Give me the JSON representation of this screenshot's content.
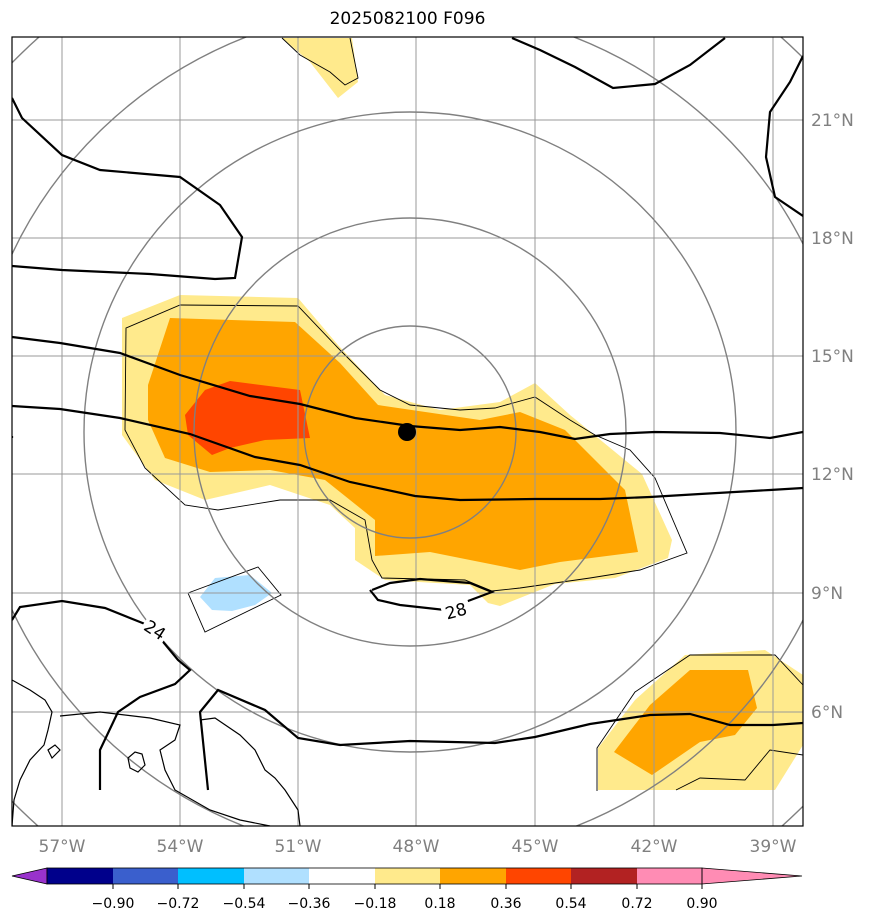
{
  "title": "2025082100 F096",
  "map": {
    "lon_labels": [
      "57°W",
      "54°W",
      "51°W",
      "48°W",
      "45°W",
      "42°W",
      "39°W"
    ],
    "lat_labels": [
      "21°N",
      "18°N",
      "15°N",
      "12°N",
      "9°N",
      "6°N"
    ],
    "storm_center": {
      "lon": "48.2°W",
      "lat": "13.1°N"
    },
    "range_rings": 5,
    "contour_labels": [
      "24",
      "28"
    ],
    "fill_colors": {
      "pos_018_036": "#ffea8c",
      "pos_036_054": "#ffa500",
      "pos_054_072": "#ff4500",
      "neg_018_036": "#b0e0ff"
    }
  },
  "colorbar": {
    "ticks": [
      "−0.90",
      "−0.72",
      "−0.54",
      "−0.36",
      "−0.18",
      "0.18",
      "0.36",
      "0.54",
      "0.72",
      "0.90"
    ],
    "colors": [
      "#9932cc",
      "#00008b",
      "#3a5fcd",
      "#00bfff",
      "#b0e0ff",
      "#ffffff",
      "#ffea8c",
      "#ffa500",
      "#ff4500",
      "#b22222",
      "#ff8cb4"
    ]
  }
}
